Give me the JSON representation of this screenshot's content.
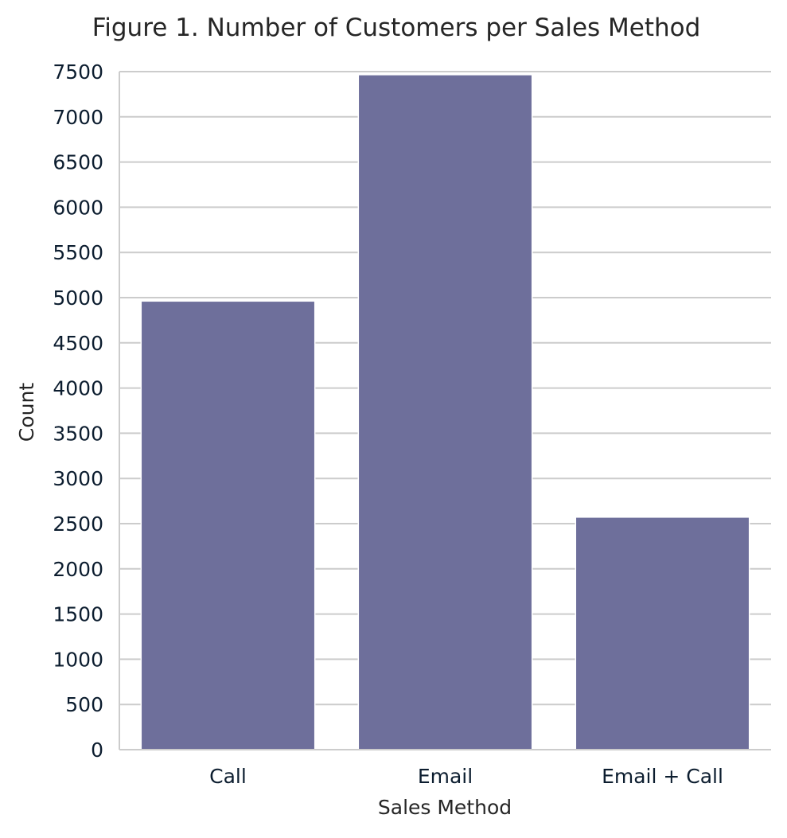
{
  "chart_data": {
    "type": "bar",
    "title": "Figure 1. Number of Customers per Sales Method",
    "xlabel": "Sales Method",
    "ylabel": "Count",
    "categories": [
      "Call",
      "Email",
      "Email + Call"
    ],
    "values": [
      4962,
      7466,
      2572
    ],
    "ylim": [
      0,
      7500
    ],
    "yticks": [
      "0",
      "500",
      "1000",
      "1500",
      "2000",
      "2500",
      "3000",
      "3500",
      "4000",
      "4500",
      "5000",
      "5500",
      "6000",
      "6500",
      "7000",
      "7500"
    ],
    "grid": true,
    "grid_axis": "y",
    "bar_color": "#6e6f9b",
    "grid_color": "#cccccc",
    "text_color": "#262626",
    "tick_color": "#0c1d2f"
  }
}
